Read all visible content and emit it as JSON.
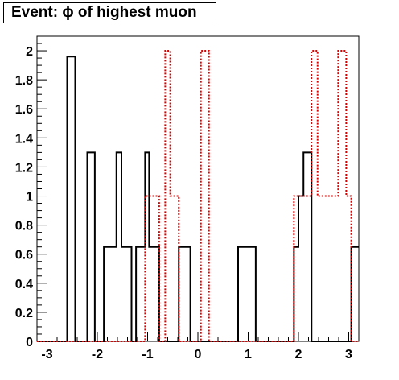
{
  "chart_data": {
    "type": "histogram",
    "title": "Event: ϕ of highest muon",
    "xlabel": "",
    "ylabel": "",
    "xlim": [
      -3.2,
      3.2
    ],
    "ylim": [
      0,
      2.1
    ],
    "x_ticks": [
      "-3",
      "-2",
      "-1",
      "0",
      "1",
      "2",
      "3"
    ],
    "y_ticks": [
      "0",
      "0.2",
      "0.4",
      "0.6",
      "0.8",
      "1",
      "1.2",
      "1.4",
      "1.6",
      "1.8",
      "2"
    ],
    "grid": false,
    "legend": "none",
    "bin_edges": [
      -3.2,
      -2.6,
      -2.44,
      -2.32,
      -2.2,
      -2.05,
      -1.87,
      -1.7,
      -1.62,
      -1.52,
      -1.32,
      -1.23,
      -1.05,
      -0.97,
      -0.77,
      -0.65,
      -0.55,
      -0.38,
      -0.2,
      -0.15,
      0.06,
      0.22,
      0.38,
      0.55,
      0.8,
      0.93,
      1.15,
      1.7,
      1.78,
      1.91,
      2.0,
      2.1,
      2.26,
      2.38,
      2.62,
      2.79,
      2.95,
      3.05,
      3.2
    ],
    "series": [
      {
        "color": "#000000",
        "style": "solid",
        "values": [
          0,
          1.96,
          0,
          0,
          1.3,
          0,
          0.65,
          0.65,
          1.3,
          0.65,
          0,
          0.65,
          1.3,
          0.65,
          0,
          0,
          0,
          0.65,
          0.65,
          0,
          0,
          0,
          0,
          0,
          0.65,
          0.65,
          0,
          0,
          0,
          0.65,
          1.0,
          1.3,
          0,
          0,
          0,
          0,
          0,
          0.65
        ]
      },
      {
        "color": "#dd0000",
        "style": "dotted",
        "values": [
          0,
          0,
          0,
          0,
          0,
          0,
          0,
          0,
          0,
          0,
          0,
          0,
          1.0,
          1.0,
          0,
          2.0,
          1.0,
          0,
          0,
          0,
          2.0,
          0,
          0,
          0,
          0,
          0,
          0,
          0,
          0,
          1.0,
          1.0,
          1.0,
          2.0,
          1.0,
          1.0,
          2.0,
          1.0,
          0
        ]
      }
    ]
  }
}
